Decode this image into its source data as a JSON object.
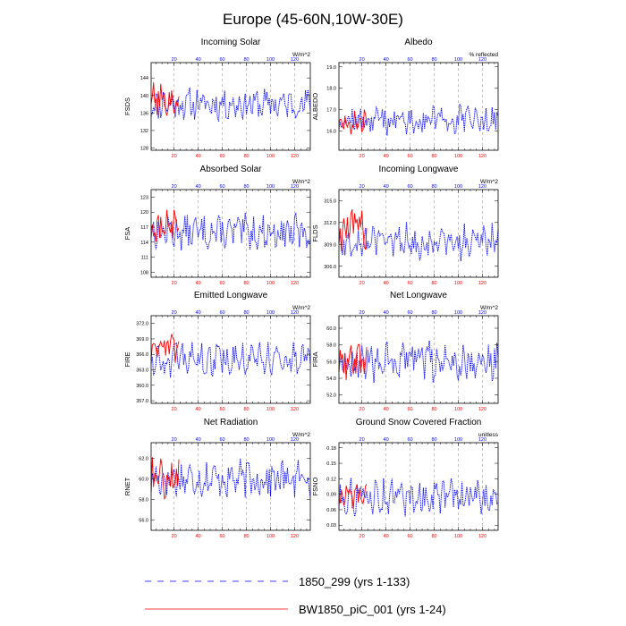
{
  "figure_title": "Europe (45-60N,10W-30E)",
  "colors": {
    "control": "#0000ff",
    "experiment": "#ff0000",
    "grid": "#999999",
    "frame": "#000000"
  },
  "legend": [
    {
      "label": "1850_299 (yrs 1-133)",
      "color": "#0000ff",
      "style": "dashed"
    },
    {
      "label": "BW1850_piC_001 (yrs 1-24)",
      "color": "#ff0000",
      "style": "solid"
    }
  ],
  "chart_data": [
    {
      "type": "line",
      "title": "Incoming Solar",
      "units": "W/m^2",
      "ylabel": "FSDS",
      "xlim": [
        1,
        133
      ],
      "xticks": [
        20,
        40,
        60,
        80,
        100,
        120
      ],
      "ylim": [
        127.5,
        147.5
      ],
      "yticks": [
        "128",
        "132",
        "136",
        "140",
        "144"
      ],
      "ytick_values": [
        128,
        132,
        136,
        140,
        144
      ],
      "series": [
        {
          "name": "1850_299 (yrs 1-133)",
          "base": 138,
          "amp": 3.2,
          "seed": 11,
          "n": 133
        },
        {
          "name": "BW1850_piC_001 (yrs 1-24)",
          "base": 139,
          "amp": 3.4,
          "seed": 101,
          "n": 24
        }
      ]
    },
    {
      "type": "line",
      "title": "Albedo",
      "units": "% reflected",
      "ylabel": "ALBEDO",
      "xlim": [
        1,
        133
      ],
      "xticks": [
        20,
        40,
        60,
        80,
        100,
        120
      ],
      "ylim": [
        15.1,
        19.2
      ],
      "yticks": [
        "16.0",
        "17.0",
        "18.0",
        "19.0"
      ],
      "ytick_values": [
        16.0,
        17.0,
        18.0,
        19.0
      ],
      "series": [
        {
          "name": "1850_299 (yrs 1-133)",
          "base": 16.5,
          "amp": 0.6,
          "seed": 12,
          "n": 133
        },
        {
          "name": "BW1850_piC_001 (yrs 1-24)",
          "base": 16.4,
          "amp": 0.5,
          "seed": 102,
          "n": 24
        }
      ]
    },
    {
      "type": "line",
      "title": "Absorbed Solar",
      "units": "W/m^2",
      "ylabel": "FSA",
      "xlim": [
        1,
        133
      ],
      "xticks": [
        20,
        40,
        60,
        80,
        100,
        120
      ],
      "ylim": [
        107,
        124.5
      ],
      "yticks": [
        "108",
        "111",
        "114",
        "117",
        "120",
        "123"
      ],
      "ytick_values": [
        108,
        111,
        114,
        117,
        120,
        123
      ],
      "series": [
        {
          "name": "1850_299 (yrs 1-133)",
          "base": 116,
          "amp": 3.0,
          "seed": 13,
          "n": 133
        },
        {
          "name": "BW1850_piC_001 (yrs 1-24)",
          "base": 117,
          "amp": 3.0,
          "seed": 103,
          "n": 24
        }
      ]
    },
    {
      "type": "line",
      "title": "Incoming Longwave",
      "units": "W/m^2",
      "ylabel": "FLDS",
      "xlim": [
        1,
        133
      ],
      "xticks": [
        20,
        40,
        60,
        80,
        100,
        120
      ],
      "ylim": [
        304.5,
        316.5
      ],
      "yticks": [
        "306.0",
        "309.0",
        "312.0",
        "315.0"
      ],
      "ytick_values": [
        306.0,
        309.0,
        312.0,
        315.0
      ],
      "series": [
        {
          "name": "1850_299 (yrs 1-133)",
          "base": 309.5,
          "amp": 2.2,
          "seed": 14,
          "n": 133
        },
        {
          "name": "BW1850_piC_001 (yrs 1-24)",
          "base": 311,
          "amp": 2.5,
          "seed": 104,
          "n": 24
        }
      ]
    },
    {
      "type": "line",
      "title": "Emitted Longwave",
      "units": "W/m^2",
      "ylabel": "FIRE",
      "xlim": [
        1,
        133
      ],
      "xticks": [
        20,
        40,
        60,
        80,
        100,
        120
      ],
      "ylim": [
        356.5,
        373.5
      ],
      "yticks": [
        "357.0",
        "360.0",
        "363.0",
        "366.0",
        "369.0",
        "372.0"
      ],
      "ytick_values": [
        357.0,
        360.0,
        363.0,
        366.0,
        369.0,
        372.0
      ],
      "series": [
        {
          "name": "1850_299 (yrs 1-133)",
          "base": 365,
          "amp": 2.8,
          "seed": 15,
          "n": 133
        },
        {
          "name": "BW1850_piC_001 (yrs 1-24)",
          "base": 367,
          "amp": 2.8,
          "seed": 105,
          "n": 24
        }
      ]
    },
    {
      "type": "line",
      "title": "Net Longwave",
      "units": "W/m^2",
      "ylabel": "FIRA",
      "xlim": [
        1,
        133
      ],
      "xticks": [
        20,
        40,
        60,
        80,
        100,
        120
      ],
      "ylim": [
        51,
        61.5
      ],
      "yticks": [
        "52.0",
        "54.0",
        "56.0",
        "58.0",
        "60.0"
      ],
      "ytick_values": [
        52.0,
        54.0,
        56.0,
        58.0,
        60.0
      ],
      "series": [
        {
          "name": "1850_299 (yrs 1-133)",
          "base": 56,
          "amp": 2.0,
          "seed": 16,
          "n": 133
        },
        {
          "name": "BW1850_piC_001 (yrs 1-24)",
          "base": 56,
          "amp": 1.8,
          "seed": 106,
          "n": 24
        }
      ]
    },
    {
      "type": "line",
      "title": "Net Radiation",
      "units": "W/m^2",
      "ylabel": "RNET",
      "xlim": [
        1,
        133
      ],
      "xticks": [
        20,
        40,
        60,
        80,
        100,
        120
      ],
      "ylim": [
        55,
        63.5
      ],
      "yticks": [
        "56.0",
        "58.0",
        "60.0",
        "62.0"
      ],
      "ytick_values": [
        56.0,
        58.0,
        60.0,
        62.0
      ],
      "series": [
        {
          "name": "1850_299 (yrs 1-133)",
          "base": 60,
          "amp": 1.6,
          "seed": 17,
          "n": 133
        },
        {
          "name": "BW1850_piC_001 (yrs 1-24)",
          "base": 60,
          "amp": 1.7,
          "seed": 107,
          "n": 24
        }
      ]
    },
    {
      "type": "line",
      "title": "Ground Snow Covered Fraction",
      "units": "unitless",
      "ylabel": "FSNO",
      "xlim": [
        1,
        133
      ],
      "xticks": [
        20,
        40,
        60,
        80,
        100,
        120
      ],
      "ylim": [
        0.02,
        0.19
      ],
      "yticks": [
        "0.03",
        "0.06",
        "0.09",
        "0.12",
        "0.15",
        "0.18"
      ],
      "ytick_values": [
        0.03,
        0.06,
        0.09,
        0.12,
        0.15,
        0.18
      ],
      "series": [
        {
          "name": "1850_299 (yrs 1-133)",
          "base": 0.085,
          "amp": 0.03,
          "seed": 18,
          "n": 133
        },
        {
          "name": "BW1850_piC_001 (yrs 1-24)",
          "base": 0.085,
          "amp": 0.025,
          "seed": 108,
          "n": 24
        }
      ]
    }
  ]
}
